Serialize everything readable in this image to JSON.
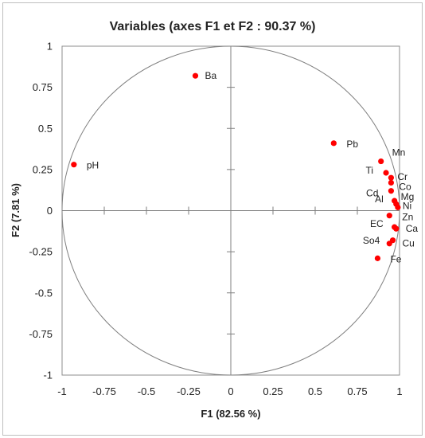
{
  "chart_data": {
    "type": "scatter",
    "title": "Variables (axes F1 et F2 : 90.37 %)",
    "xlabel": "F1 (82.56 %)",
    "ylabel": "F2 (7.81 %)",
    "xlim": [
      -1,
      1
    ],
    "ylim": [
      -1,
      1
    ],
    "x_ticks": [
      "-1",
      "-0.75",
      "-0.5",
      "-0.25",
      "0",
      "0.25",
      "0.5",
      "0.75",
      "1"
    ],
    "y_ticks": [
      "1",
      "0.75",
      "0.5",
      "0.25",
      "0",
      "-0.25",
      "-0.5",
      "-0.75",
      "-1"
    ],
    "correlation_circle": true,
    "grid": false,
    "marker_color": "#ff0000",
    "points": [
      {
        "label": "Ba",
        "x": -0.21,
        "y": 0.82
      },
      {
        "label": "pH",
        "x": -0.93,
        "y": 0.28
      },
      {
        "label": "Pb",
        "x": 0.61,
        "y": 0.41
      },
      {
        "label": "Mn",
        "x": 0.89,
        "y": 0.3
      },
      {
        "label": "Ti",
        "x": 0.92,
        "y": 0.23
      },
      {
        "label": "Cr",
        "x": 0.95,
        "y": 0.2
      },
      {
        "label": "Co",
        "x": 0.95,
        "y": 0.17
      },
      {
        "label": "Cd",
        "x": 0.95,
        "y": 0.12
      },
      {
        "label": "Mg",
        "x": 0.97,
        "y": 0.06
      },
      {
        "label": "Al",
        "x": 0.98,
        "y": 0.04
      },
      {
        "label": "Ni",
        "x": 0.99,
        "y": 0.02
      },
      {
        "label": "Zn",
        "x": 0.94,
        "y": -0.03
      },
      {
        "label": "EC",
        "x": 0.97,
        "y": -0.1
      },
      {
        "label": "Ca",
        "x": 0.98,
        "y": -0.11
      },
      {
        "label": "So4",
        "x": 0.94,
        "y": -0.2
      },
      {
        "label": "Cu",
        "x": 0.96,
        "y": -0.18
      },
      {
        "label": "Fe",
        "x": 0.87,
        "y": -0.29
      }
    ]
  }
}
